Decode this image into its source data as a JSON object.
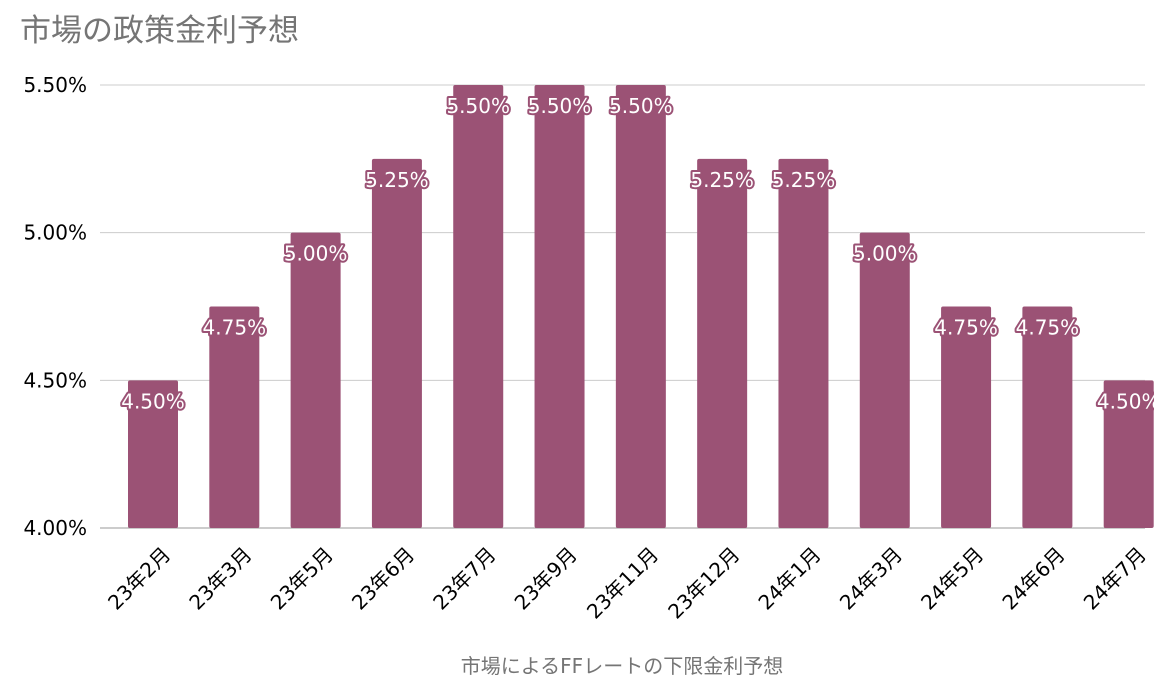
{
  "chart_data": {
    "type": "bar",
    "title": "市場の政策金利予想",
    "xlabel": "市場によるFFレートの下限金利予想",
    "ylabel": "",
    "categories": [
      "23年2月",
      "23年3月",
      "23年5月",
      "23年6月",
      "23年7月",
      "23年9月",
      "23年11月",
      "23年12月",
      "24年1月",
      "24年3月",
      "24年5月",
      "24年6月",
      "24年7月"
    ],
    "values": [
      4.5,
      4.75,
      5.0,
      5.25,
      5.5,
      5.5,
      5.5,
      5.25,
      5.25,
      5.0,
      4.75,
      4.75,
      4.5
    ],
    "data_labels": [
      "4.50%",
      "4.75%",
      "5.00%",
      "5.25%",
      "5.50%",
      "5.50%",
      "5.50%",
      "5.25%",
      "5.25%",
      "5.00%",
      "4.75%",
      "4.75%",
      "4.50%"
    ],
    "ylim": [
      4.0,
      5.5
    ],
    "yticks": [
      4.0,
      4.5,
      5.0,
      5.5
    ],
    "ytick_labels": [
      "4.00%",
      "4.50%",
      "5.00%",
      "5.50%"
    ],
    "grid": true,
    "legend": "none",
    "colors": {
      "bar": "#9b5275",
      "grid": "#cccccc",
      "title": "#757575",
      "axis_text": "#000000",
      "xlabel": "#757575",
      "label_text": "#ffffff",
      "label_outline": "#9b5275"
    }
  }
}
